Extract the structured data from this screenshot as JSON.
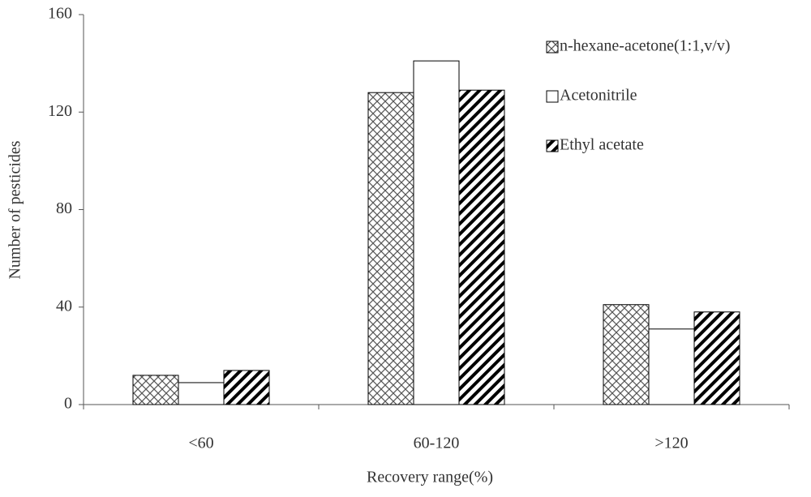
{
  "chart_data": {
    "type": "bar",
    "xlabel": "Recovery range(%)",
    "ylabel": "Number of pesticides",
    "categories": [
      "<60",
      "60-120",
      ">120"
    ],
    "series": [
      {
        "name": "n-hexane-acetone(1:1,v/v)",
        "color": "#000000",
        "pattern": "crosshatch",
        "values": [
          12,
          128,
          41
        ]
      },
      {
        "name": "Acetonitrile",
        "color": "#000000",
        "pattern": "none",
        "values": [
          9,
          141,
          31
        ]
      },
      {
        "name": "Ethyl acetate",
        "color": "#000000",
        "pattern": "diagonal",
        "values": [
          14,
          129,
          38
        ]
      }
    ],
    "ylim": [
      0,
      160
    ],
    "yticks": [
      0,
      40,
      80,
      120,
      160
    ],
    "grid": false,
    "legend": "upper right"
  }
}
